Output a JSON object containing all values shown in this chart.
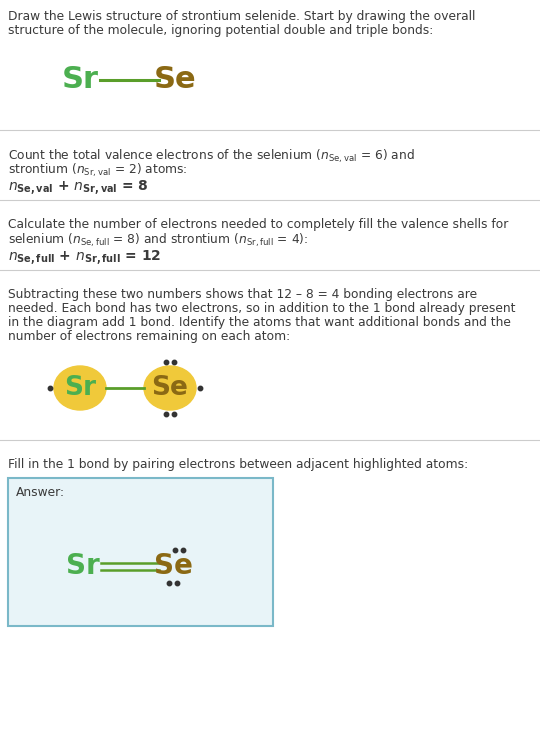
{
  "bg_color": "#ffffff",
  "text_color": "#3a3a3a",
  "sr_color": "#4caf50",
  "se_color": "#8b6914",
  "highlight_circle_color": "#f0c93a",
  "bond_color": "#5a9e2a",
  "answer_box_bg": "#e8f4f8",
  "answer_box_border": "#7ab8c8",
  "separator_color": "#cccccc",
  "dot_color": "#333333",
  "section1_line1": "Draw the Lewis structure of strontium selenide. Start by drawing the overall",
  "section1_line2": "structure of the molecule, ignoring potential double and triple bonds:",
  "sec2_line1_pre": "Count the total valence electrons of the selenium (",
  "sec2_line1_post": " = 6) and",
  "sec2_line2_pre": "strontium (",
  "sec2_line2_post": " = 2) atoms:",
  "sec3_line1": "Calculate the number of electrons needed to completely fill the valence shells for",
  "sec3_line2_pre": "selenium (",
  "sec3_line2_mid": " = 8) and strontium (",
  "sec3_line2_post": " = 4):",
  "sec4_line1": "Subtracting these two numbers shows that 12 – 8 = 4 bonding electrons are",
  "sec4_line2": "needed. Each bond has two electrons, so in addition to the 1 bond already present",
  "sec4_line3": "in the diagram add 1 bond. Identify the atoms that want additional bonds and the",
  "sec4_line4": "number of electrons remaining on each atom:",
  "sec5_line1": "Fill in the 1 bond by pairing electrons between adjacent highlighted atoms:",
  "answer_label": "Answer:"
}
